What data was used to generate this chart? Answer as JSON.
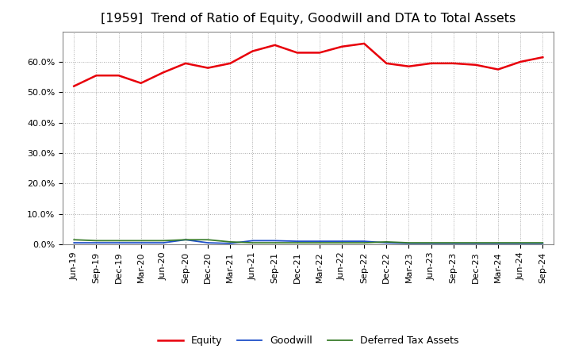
{
  "title": "[1959]  Trend of Ratio of Equity, Goodwill and DTA to Total Assets",
  "x_labels": [
    "Jun-19",
    "Sep-19",
    "Dec-19",
    "Mar-20",
    "Jun-20",
    "Sep-20",
    "Dec-20",
    "Mar-21",
    "Jun-21",
    "Sep-21",
    "Dec-21",
    "Mar-22",
    "Jun-22",
    "Sep-22",
    "Dec-22",
    "Mar-23",
    "Jun-23",
    "Sep-23",
    "Dec-23",
    "Mar-24",
    "Jun-24",
    "Sep-24"
  ],
  "equity": [
    52.0,
    55.5,
    55.5,
    53.0,
    56.5,
    59.5,
    58.0,
    59.5,
    63.5,
    65.5,
    63.0,
    63.0,
    65.0,
    66.0,
    59.5,
    58.5,
    59.5,
    59.5,
    59.0,
    57.5,
    60.0,
    61.5
  ],
  "goodwill": [
    0.5,
    0.5,
    0.5,
    0.5,
    0.5,
    1.5,
    0.5,
    0.3,
    1.2,
    1.2,
    1.0,
    1.0,
    1.0,
    1.0,
    0.5,
    0.3,
    0.3,
    0.3,
    0.3,
    0.3,
    0.3,
    0.3
  ],
  "dta": [
    1.5,
    1.2,
    1.2,
    1.2,
    1.2,
    1.5,
    1.5,
    0.8,
    0.5,
    0.5,
    0.5,
    0.5,
    0.5,
    0.5,
    0.8,
    0.5,
    0.5,
    0.5,
    0.5,
    0.5,
    0.5,
    0.5
  ],
  "equity_color": "#e8000a",
  "goodwill_color": "#1f50c8",
  "dta_color": "#3a7d2c",
  "ylim": [
    0,
    70
  ],
  "yticks": [
    0,
    10,
    20,
    30,
    40,
    50,
    60
  ],
  "ytick_labels": [
    "0.0%",
    "10.0%",
    "20.0%",
    "30.0%",
    "40.0%",
    "50.0%",
    "60.0%"
  ],
  "background_color": "#ffffff",
  "plot_bg_color": "#ffffff",
  "grid_color": "#aaaaaa",
  "title_fontsize": 11.5,
  "tick_fontsize": 8,
  "legend_labels": [
    "Equity",
    "Goodwill",
    "Deferred Tax Assets"
  ]
}
